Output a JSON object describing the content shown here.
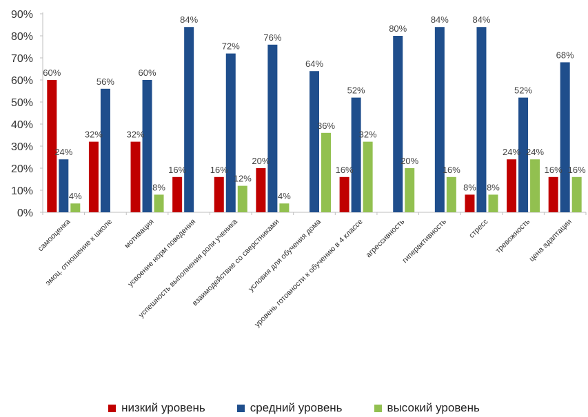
{
  "chart_data": {
    "type": "bar",
    "categories": [
      "самооценка",
      "эмоц. отношение к школе",
      "мотивация",
      "усвоение норм поведения",
      "успешность выполнения роли ученика",
      "взаимодействие со сверстниками",
      "условия для обучения дома",
      "уровень готовности к обучению в 4 классе",
      "агрессивность",
      "гиперактивность",
      "стресс",
      "тревожность",
      "цена адаптации"
    ],
    "series": [
      {
        "name": "низкий уровень",
        "color": "#c00000",
        "values": [
          60,
          32,
          32,
          16,
          16,
          20,
          0,
          16,
          0,
          0,
          8,
          24,
          16
        ],
        "labels": [
          "60%",
          "32%",
          "32%",
          "16%",
          "16%",
          "20%",
          "",
          "16%",
          "",
          "",
          "8%",
          "24%",
          "16%"
        ]
      },
      {
        "name": "средний уровень",
        "color": "#1f4e8c",
        "values": [
          24,
          56,
          60,
          84,
          72,
          76,
          64,
          52,
          80,
          84,
          84,
          52,
          68
        ],
        "labels": [
          "24%",
          "56%",
          "60%",
          "84%",
          "72%",
          "76%",
          "64%",
          "52%",
          "80%",
          "84%",
          "84%",
          "52%",
          "68%"
        ]
      },
      {
        "name": "высокий уровень",
        "color": "#92c050",
        "values": [
          4,
          0,
          8,
          0,
          12,
          4,
          36,
          32,
          20,
          16,
          8,
          24,
          16
        ],
        "labels": [
          "4%",
          "",
          "8%",
          "",
          "12%",
          "4%",
          "36%",
          "32%",
          "20%",
          "16%",
          "8%",
          "24%",
          "16%"
        ]
      }
    ],
    "yticks": [
      "0%",
      "10%",
      "20%",
      "30%",
      "40%",
      "50%",
      "60%",
      "70%",
      "80%",
      "90%"
    ],
    "ylim": [
      0,
      90
    ],
    "grid": false,
    "legend_position": "bottom"
  }
}
